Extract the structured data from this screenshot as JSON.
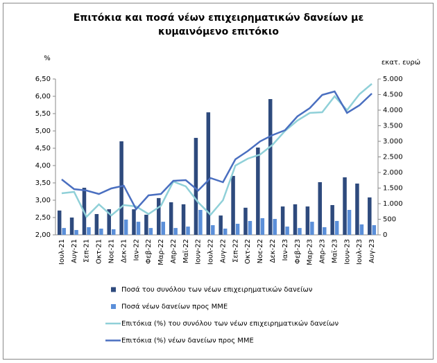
{
  "chart_data": {
    "type": "bar_line",
    "title_lines": [
      "Επιτόκια και ποσά νέων επιχειρηματικών δανείων με",
      "κυμαινόμενο επιτόκιο"
    ],
    "y_label": "%",
    "y2_label": "εκατ. ευρώ",
    "categories": [
      "Ιουλ-21",
      "Αυγ-21",
      "Σεπ-21",
      "Οκτ-21",
      "Νοε-21",
      "Δεκ-21",
      "Ιαν-22",
      "Φεβ-22",
      "Μαρ-22",
      "Απρ-22",
      "Μαϊ-22",
      "Ιουν-22",
      "Ιουλ-22",
      "Αυγ-22",
      "Σεπ-22",
      "Οκτ-22",
      "Νοε-22",
      "Δεκ-22",
      "Ιαν-23",
      "Φεβ-23",
      "Μαρ-23",
      "Απρ-23",
      "Μαϊ-23",
      "Ιουν-23",
      "Ιουλ-23",
      "Αυγ-23"
    ],
    "series": [
      {
        "name": "Ποσά του συνόλου των νέων επιχειρηματικών δανείων",
        "type": "bar",
        "axis": "y2",
        "color": "#2e4a7d",
        "values": [
          780,
          555,
          1510,
          667,
          822,
          3000,
          820,
          645,
          1180,
          1045,
          980,
          3110,
          3930,
          620,
          1890,
          870,
          2800,
          4355,
          910,
          980,
          910,
          1690,
          955,
          1845,
          1645,
          1200
        ]
      },
      {
        "name": "Ποσά νέων δανείων προς ΜΜΕ",
        "type": "bar",
        "axis": "y2",
        "color": "#5b8fd9",
        "values": [
          220,
          155,
          245,
          200,
          180,
          490,
          420,
          220,
          420,
          220,
          265,
          800,
          310,
          200,
          355,
          445,
          535,
          510,
          265,
          220,
          420,
          245,
          445,
          800,
          335,
          310
        ]
      },
      {
        "name": "Επιτόκια (%) του συνόλου των νέων επιχειρηματικών δανείων",
        "type": "line",
        "color": "#8fd0d8",
        "values": [
          3.2,
          3.24,
          2.52,
          2.88,
          2.56,
          2.86,
          2.82,
          2.6,
          2.84,
          3.54,
          3.4,
          2.94,
          2.58,
          3.0,
          4.0,
          4.2,
          4.32,
          4.6,
          5.0,
          5.3,
          5.52,
          5.54,
          6.0,
          5.6,
          6.06,
          6.36
        ]
      },
      {
        "name": "Επιτόκια (%) νέων δανείων προς ΜΜΕ",
        "type": "line",
        "color": "#4a6fc0",
        "values": [
          3.6,
          3.32,
          3.28,
          3.18,
          3.34,
          3.42,
          2.74,
          3.14,
          3.18,
          3.56,
          3.58,
          3.28,
          3.64,
          3.52,
          4.18,
          4.42,
          4.7,
          4.88,
          5.02,
          5.42,
          5.66,
          6.04,
          6.14,
          5.52,
          5.74,
          6.08
        ]
      }
    ],
    "ylim": [
      2,
      6.5
    ],
    "yticks": [
      {
        "value": 2,
        "label": "2,00"
      },
      {
        "value": 2.5,
        "label": "2,50"
      },
      {
        "value": 3,
        "label": "3,00"
      },
      {
        "value": 3.5,
        "label": "3,50"
      },
      {
        "value": 4,
        "label": "4,00"
      },
      {
        "value": 4.5,
        "label": "4,50"
      },
      {
        "value": 5,
        "label": "5,00"
      },
      {
        "value": 5.5,
        "label": "5,50"
      },
      {
        "value": 6,
        "label": "6,00"
      },
      {
        "value": 6.5,
        "label": "6,50"
      }
    ],
    "y2lim": [
      0,
      5000
    ],
    "y2ticks": [
      0,
      500,
      {
        "value": 1000,
        "label": "1.000"
      },
      {
        "value": 1500,
        "label": "1.500"
      },
      {
        "value": 2000,
        "label": "2.000"
      },
      {
        "value": 2500,
        "label": "2.500"
      },
      {
        "value": 3000,
        "label": "3.000"
      },
      {
        "value": 3500,
        "label": "3.500"
      },
      {
        "value": 4000,
        "label": "4.000"
      },
      {
        "value": 4500,
        "label": "4.500"
      },
      {
        "value": 5000,
        "label": "5.000"
      }
    ],
    "legend": "bottom"
  }
}
